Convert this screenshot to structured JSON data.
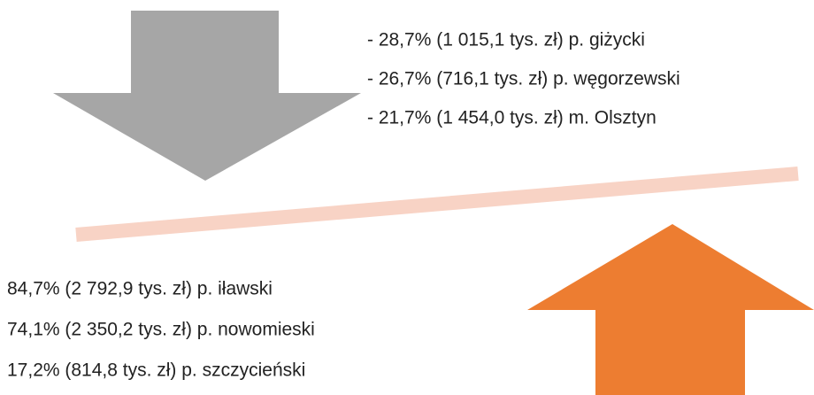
{
  "decreases": [
    "- 28,7% (1 015,1 tys. zł) p. giżycki",
    "- 26,7% (716,1 tys. zł) p. węgorzewski",
    "- 21,7% (1 454,0 tys. zł) m. Olsztyn"
  ],
  "increases": [
    "84,7% (2 792,9 tys. zł) p. iławski",
    "74,1% (2 350,2 tys. zł) p. nowomieski",
    "17,2% (814,8 tys. zł) p. szczycieński"
  ]
}
